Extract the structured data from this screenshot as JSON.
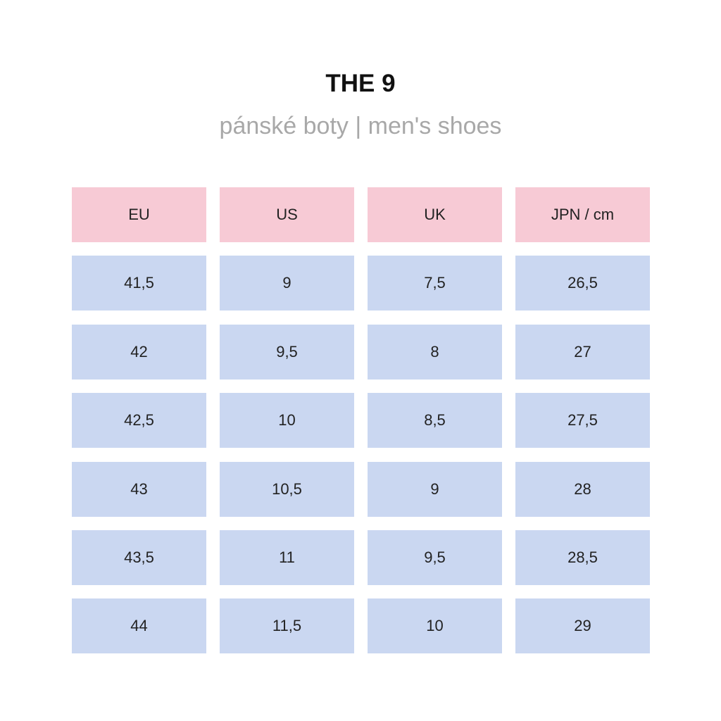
{
  "title": "THE 9",
  "subtitle": "pánské boty | men's shoes",
  "colors": {
    "header_bg": "#f7cad5",
    "cell_bg": "#cad7f1",
    "title": "#111111",
    "subtitle": "#a8a8a8"
  },
  "table": {
    "headers": [
      "EU",
      "US",
      "UK",
      "JPN / cm"
    ],
    "rows": [
      [
        "41,5",
        "9",
        "7,5",
        "26,5"
      ],
      [
        "42",
        "9,5",
        "8",
        "27"
      ],
      [
        "42,5",
        "10",
        "8,5",
        "27,5"
      ],
      [
        "43",
        "10,5",
        "9",
        "28"
      ],
      [
        "43,5",
        "11",
        "9,5",
        "28,5"
      ],
      [
        "44",
        "11,5",
        "10",
        "29"
      ]
    ]
  }
}
